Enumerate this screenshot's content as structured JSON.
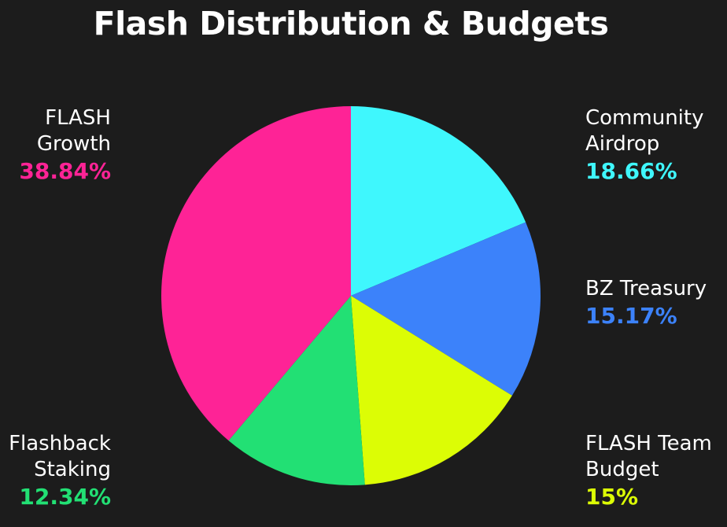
{
  "chart_data": {
    "type": "pie",
    "title": "Flash Distribution & Budgets",
    "slices": [
      {
        "label_lines": [
          "Community",
          "Airdrop"
        ],
        "value": 18.66,
        "value_text": "18.66%",
        "color": "#3ff7fd"
      },
      {
        "label_lines": [
          "BZ Treasury"
        ],
        "value": 15.17,
        "value_text": "15.17%",
        "color": "#3c82fa"
      },
      {
        "label_lines": [
          "FLASH Team",
          "Budget"
        ],
        "value": 15.0,
        "value_text": "15%",
        "color": "#dcfd05"
      },
      {
        "label_lines": [
          "Flashback",
          "Staking"
        ],
        "value": 12.34,
        "value_text": "12.34%",
        "color": "#22e074"
      },
      {
        "label_lines": [
          "FLASH",
          "Growth"
        ],
        "value": 38.84,
        "value_text": "38.84%",
        "color": "#fe2396"
      }
    ]
  },
  "background_color": "#1c1c1c"
}
